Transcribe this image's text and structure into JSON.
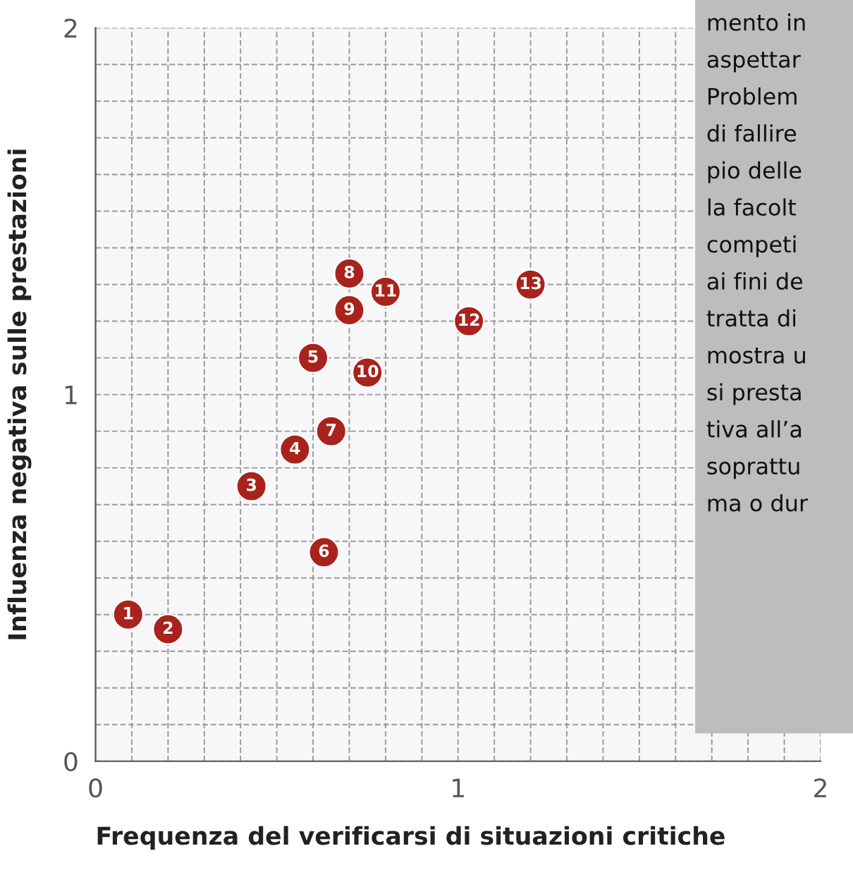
{
  "chart_data": {
    "type": "scatter",
    "xlabel": "Frequenza del verificarsi di situazioni critiche",
    "ylabel": "Influenza negativa sulle prestazioni",
    "x": [
      0.09,
      0.2,
      0.43,
      0.55,
      0.6,
      0.63,
      0.65,
      0.7,
      0.7,
      0.75,
      0.8,
      1.03,
      1.2
    ],
    "series": [
      {
        "color": "#a8231c",
        "values": [
          0.4,
          0.36,
          0.75,
          0.85,
          1.1,
          0.57,
          0.9,
          1.33,
          1.23,
          1.06,
          1.28,
          1.2,
          1.3
        ]
      }
    ],
    "xlim": [
      0,
      2
    ],
    "ylim": [
      0,
      2
    ],
    "xticks": [
      0,
      {
        "value": 0.1,
        "label": null
      },
      {
        "value": 0.2,
        "label": null
      },
      {
        "value": 0.3,
        "label": null
      },
      {
        "value": 0.4,
        "label": null
      },
      {
        "value": 0.5,
        "label": null
      },
      {
        "value": 0.6,
        "label": null
      },
      {
        "value": 0.7,
        "label": null
      },
      {
        "value": 0.8,
        "label": null
      },
      {
        "value": 0.9,
        "label": null
      },
      1,
      {
        "value": 1.1,
        "label": null
      },
      {
        "value": 1.2,
        "label": null
      },
      {
        "value": 1.3,
        "label": null
      },
      {
        "value": 1.4,
        "label": null
      },
      {
        "value": 1.5,
        "label": null
      },
      {
        "value": 1.6,
        "label": null
      },
      {
        "value": 1.7,
        "label": null
      },
      {
        "value": 1.8,
        "label": null
      },
      {
        "value": 1.9,
        "label": null
      },
      2
    ],
    "yticks": [
      0,
      {
        "value": 0.1,
        "label": null
      },
      {
        "value": 0.2,
        "label": null
      },
      {
        "value": 0.3,
        "label": null
      },
      {
        "value": 0.4,
        "label": null
      },
      {
        "value": 0.5,
        "label": null
      },
      {
        "value": 0.6,
        "label": null
      },
      {
        "value": 0.7,
        "label": null
      },
      {
        "value": 0.8,
        "label": null
      },
      {
        "value": 0.9,
        "label": null
      },
      1,
      {
        "value": 1.1,
        "label": null
      },
      {
        "value": 1.2,
        "label": null
      },
      {
        "value": 1.3,
        "label": null
      },
      {
        "value": 1.4,
        "label": null
      },
      {
        "value": 1.5,
        "label": null
      },
      {
        "value": 1.6,
        "label": null
      },
      {
        "value": 1.7,
        "label": null
      },
      {
        "value": 1.8,
        "label": null
      },
      {
        "value": 1.9,
        "label": null
      },
      2
    ],
    "grid": true,
    "marker": "circle",
    "annotations": [
      {
        "text": "1",
        "x": 0.09,
        "y": 0.4
      },
      {
        "text": "2",
        "x": 0.2,
        "y": 0.36
      },
      {
        "text": "3",
        "x": 0.43,
        "y": 0.75
      },
      {
        "text": "4",
        "x": 0.55,
        "y": 0.85
      },
      {
        "text": "5",
        "x": 0.6,
        "y": 1.1
      },
      {
        "text": "6",
        "x": 0.63,
        "y": 0.57
      },
      {
        "text": "7",
        "x": 0.65,
        "y": 0.9
      },
      {
        "text": "8",
        "x": 0.7,
        "y": 1.33
      },
      {
        "text": "9",
        "x": 0.7,
        "y": 1.23
      },
      {
        "text": "10",
        "x": 0.75,
        "y": 1.06
      },
      {
        "text": "11",
        "x": 0.8,
        "y": 1.28
      },
      {
        "text": "12",
        "x": 1.03,
        "y": 1.2
      },
      {
        "text": "13",
        "x": 1.2,
        "y": 1.3
      },
      "mento in",
      "aspettar",
      "Problem",
      "di fallire",
      "pio delle",
      "la facolt",
      "competi",
      "ai fini de",
      "tratta di",
      "mostra u",
      "si presta",
      "tiva all’a",
      "soprattu",
      "ma o dur"
    ]
  }
}
